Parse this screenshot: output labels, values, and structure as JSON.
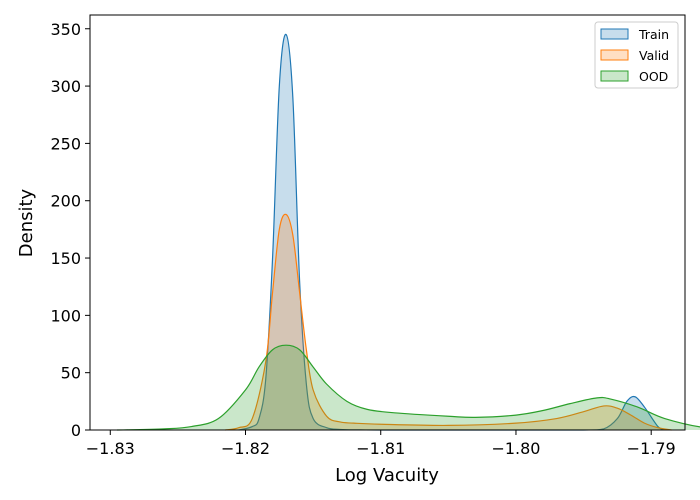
{
  "chart_data": {
    "type": "area",
    "xlabel": "Log Vacuity",
    "ylabel": "Density",
    "xlim": [
      -1.8315,
      -1.7875
    ],
    "ylim": [
      0,
      362
    ],
    "x_ticks": [
      -1.83,
      -1.82,
      -1.81,
      -1.8,
      -1.79
    ],
    "x_tick_labels": [
      "−1.83",
      "−1.82",
      "−1.81",
      "−1.80",
      "−1.79"
    ],
    "y_ticks": [
      0,
      50,
      100,
      150,
      200,
      250,
      300,
      350
    ],
    "y_tick_labels": [
      "0",
      "50",
      "100",
      "150",
      "200",
      "250",
      "300",
      "350"
    ],
    "grid": false,
    "legend_position": "top-right",
    "series": [
      {
        "name": "Train",
        "color": "#1f77b4",
        "x": [
          -1.8205,
          -1.8195,
          -1.819,
          -1.8185,
          -1.818,
          -1.8175,
          -1.817,
          -1.8165,
          -1.816,
          -1.8155,
          -1.815,
          -1.814,
          -1.813,
          -1.8115,
          -1.81,
          -1.805,
          -1.8,
          -1.795,
          -1.7935,
          -1.7925,
          -1.7918,
          -1.7912,
          -1.7905,
          -1.7895,
          -1.789
        ],
        "y": [
          0,
          3,
          10,
          45,
          150,
          300,
          345,
          290,
          130,
          40,
          10,
          2,
          0.5,
          0.1,
          0,
          0,
          0,
          0,
          1,
          10,
          25,
          29,
          20,
          3,
          0
        ]
      },
      {
        "name": "Valid",
        "color": "#ff7f0e",
        "x": [
          -1.8215,
          -1.8205,
          -1.8195,
          -1.8185,
          -1.818,
          -1.8175,
          -1.817,
          -1.8165,
          -1.816,
          -1.8155,
          -1.815,
          -1.814,
          -1.813,
          -1.812,
          -1.81,
          -1.805,
          -1.8,
          -1.797,
          -1.795,
          -1.7935,
          -1.7925,
          -1.7915,
          -1.7905,
          -1.7895,
          -1.7885
        ],
        "y": [
          0,
          2,
          10,
          60,
          120,
          175,
          188,
          170,
          120,
          70,
          35,
          12,
          7,
          6,
          5,
          4,
          6,
          10,
          16,
          21,
          19,
          13,
          6,
          2,
          0
        ]
      },
      {
        "name": "OOD",
        "color": "#2ca02c",
        "x": [
          -1.8295,
          -1.826,
          -1.824,
          -1.822,
          -1.82,
          -1.819,
          -1.818,
          -1.817,
          -1.816,
          -1.815,
          -1.814,
          -1.8125,
          -1.811,
          -1.809,
          -1.805,
          -1.803,
          -1.8,
          -1.798,
          -1.796,
          -1.794,
          -1.793,
          -1.791,
          -1.789,
          -1.786,
          -1.783
        ],
        "y": [
          0,
          1,
          3,
          10,
          35,
          55,
          70,
          74,
          70,
          55,
          40,
          25,
          18,
          15,
          12,
          11,
          13,
          17,
          23,
          28,
          27,
          20,
          10,
          2,
          0
        ]
      }
    ]
  }
}
